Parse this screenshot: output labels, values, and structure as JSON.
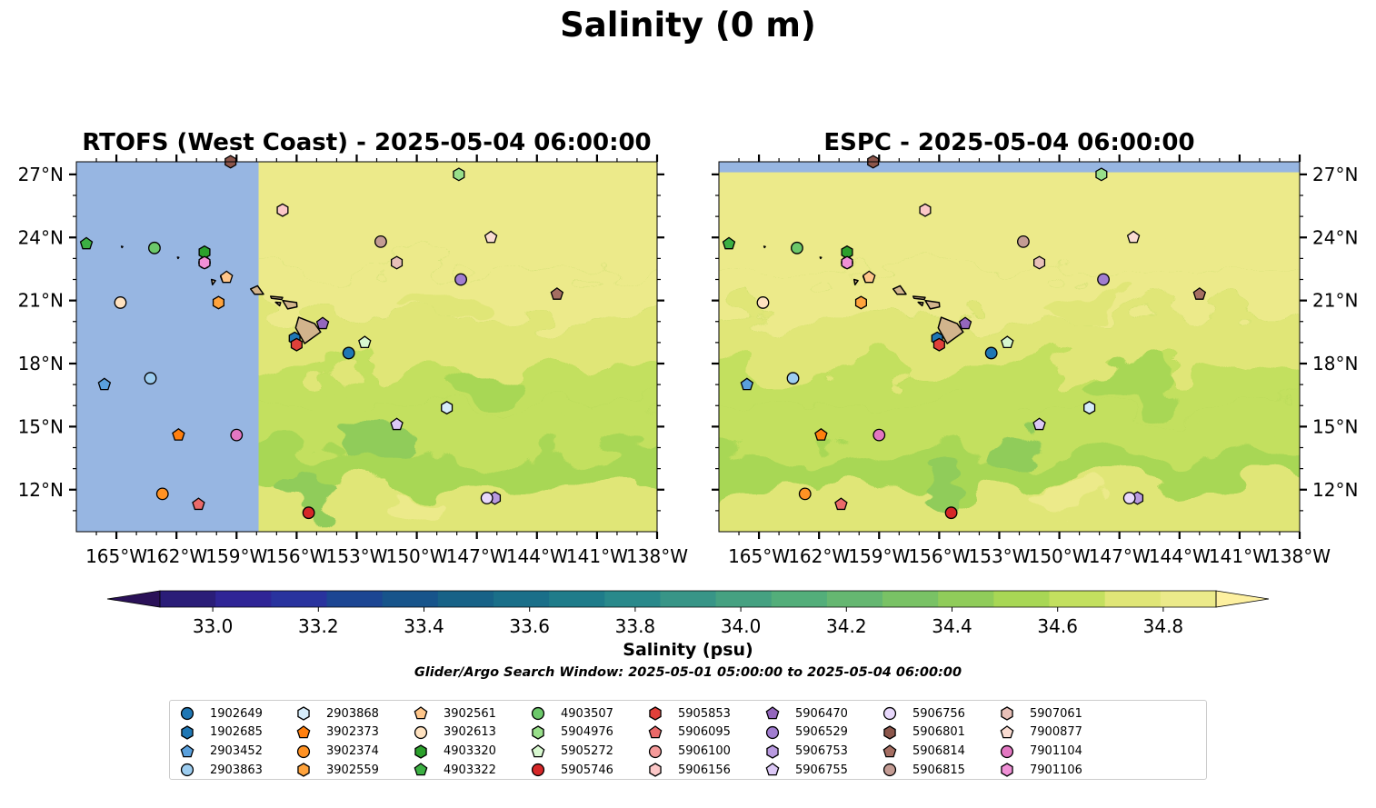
{
  "title": "Salinity (0 m)",
  "chart_data": [
    {
      "type": "heatmap",
      "title": "RTOFS (West Coast) - 2025-05-04 06:00:00",
      "xlim": [
        -167,
        -138
      ],
      "ylim": [
        10,
        27.6
      ],
      "x_ticks": [
        "165°W",
        "162°W",
        "159°W",
        "156°W",
        "153°W",
        "150°W",
        "147°W",
        "144°W",
        "141°W",
        "138°W"
      ],
      "y_ticks": [
        "12°N",
        "15°N",
        "18°N",
        "21°N",
        "24°N",
        "27°N"
      ],
      "tick_side": "left",
      "no_data_region": {
        "lon_max": -157.9
      },
      "field_description": "salinity 34.4–34.9 psu, lower values south, higher values north"
    },
    {
      "type": "heatmap",
      "title": "ESPC - 2025-05-04 06:00:00",
      "xlim": [
        -167,
        -138
      ],
      "ylim": [
        10,
        27.6
      ],
      "x_ticks": [
        "165°W",
        "162°W",
        "159°W",
        "156°W",
        "153°W",
        "150°W",
        "147°W",
        "144°W",
        "141°W",
        "138°W"
      ],
      "y_ticks": [
        "12°N",
        "15°N",
        "18°N",
        "21°N",
        "24°N",
        "27°N"
      ],
      "tick_side": "right",
      "no_data_region": {
        "lat_min": 27.1
      },
      "field_description": "salinity 34.4–34.9 psu, lower values south, higher values north"
    }
  ],
  "colorbar": {
    "label": "Salinity (psu)",
    "min": 32.9,
    "max": 34.9,
    "step": 0.1,
    "extend": "both",
    "ticks": [
      "33.0",
      "33.2",
      "33.4",
      "33.6",
      "33.8",
      "34.0",
      "34.2",
      "34.4",
      "34.6",
      "34.8"
    ],
    "colors": [
      "#2a1d78",
      "#2f2596",
      "#29339e",
      "#1c4693",
      "#17548b",
      "#176287",
      "#1a6f89",
      "#1f7c8a",
      "#29898b",
      "#389587",
      "#45a181",
      "#53ae7a",
      "#65b771",
      "#79c265",
      "#90cc5a",
      "#a8d755",
      "#c3e05f",
      "#e0e677",
      "#ecea8a"
    ],
    "under_color": "#2a1158",
    "over_color": "#fdf0a0"
  },
  "search_window": "Glider/Argo Search Window: 2025-05-01 05:00:00 to 2025-05-04 06:00:00",
  "legend": [
    {
      "id": "1902649",
      "marker": "circle",
      "color": "#1f77b4"
    },
    {
      "id": "1902685",
      "marker": "hexagon",
      "color": "#1f77b4"
    },
    {
      "id": "2903452",
      "marker": "pentagon",
      "color": "#5aa0dc"
    },
    {
      "id": "2903863",
      "marker": "circle",
      "color": "#9dcdf0"
    },
    {
      "id": "2903868",
      "marker": "hexagon",
      "color": "#d6ecfa"
    },
    {
      "id": "3902373",
      "marker": "pentagon",
      "color": "#ff7f0e"
    },
    {
      "id": "3902374",
      "marker": "circle",
      "color": "#ff9224"
    },
    {
      "id": "3902559",
      "marker": "hexagon",
      "color": "#ffa33c"
    },
    {
      "id": "3902561",
      "marker": "pentagon",
      "color": "#ffc68a"
    },
    {
      "id": "3902613",
      "marker": "circle",
      "color": "#ffe2c0"
    },
    {
      "id": "4903320",
      "marker": "hexagon",
      "color": "#2ca02c"
    },
    {
      "id": "4903322",
      "marker": "pentagon",
      "color": "#3cb043"
    },
    {
      "id": "4903507",
      "marker": "circle",
      "color": "#6cc86a"
    },
    {
      "id": "5904976",
      "marker": "hexagon",
      "color": "#98df8a"
    },
    {
      "id": "5905272",
      "marker": "pentagon",
      "color": "#d8f8d0"
    },
    {
      "id": "5905746",
      "marker": "circle",
      "color": "#d62728"
    },
    {
      "id": "5905853",
      "marker": "hexagon",
      "color": "#e0403a"
    },
    {
      "id": "5906095",
      "marker": "pentagon",
      "color": "#ea6a6a"
    },
    {
      "id": "5906100",
      "marker": "circle",
      "color": "#f59a9a"
    },
    {
      "id": "5906156",
      "marker": "hexagon",
      "color": "#fcc8c8"
    },
    {
      "id": "5906470",
      "marker": "pentagon",
      "color": "#9467bd"
    },
    {
      "id": "5906529",
      "marker": "circle",
      "color": "#a17dd0"
    },
    {
      "id": "5906753",
      "marker": "hexagon",
      "color": "#b99ae0"
    },
    {
      "id": "5906755",
      "marker": "pentagon",
      "color": "#dcc8f6"
    },
    {
      "id": "5906756",
      "marker": "circle",
      "color": "#e8d8fc"
    },
    {
      "id": "5906801",
      "marker": "hexagon",
      "color": "#8c564b"
    },
    {
      "id": "5906814",
      "marker": "pentagon",
      "color": "#a56e62"
    },
    {
      "id": "5906815",
      "marker": "circle",
      "color": "#c49c94"
    },
    {
      "id": "5907061",
      "marker": "hexagon",
      "color": "#e8c0b8"
    },
    {
      "id": "7900877",
      "marker": "pentagon",
      "color": "#fadcd2"
    },
    {
      "id": "7901104",
      "marker": "circle",
      "color": "#e377c2"
    },
    {
      "id": "7901106",
      "marker": "hexagon",
      "color": "#f090d6"
    }
  ],
  "floats": [
    {
      "id": "1902649",
      "lon": -153.4,
      "lat": 18.5
    },
    {
      "id": "1902685",
      "lon": -156.1,
      "lat": 19.2
    },
    {
      "id": "2903452",
      "lon": -165.6,
      "lat": 17.0
    },
    {
      "id": "2903863",
      "lon": -163.3,
      "lat": 17.3
    },
    {
      "id": "2903868",
      "lon": -148.5,
      "lat": 15.9
    },
    {
      "id": "3902373",
      "lon": -161.9,
      "lat": 14.6
    },
    {
      "id": "3902374",
      "lon": -162.7,
      "lat": 11.8
    },
    {
      "id": "3902559",
      "lon": -159.9,
      "lat": 20.9
    },
    {
      "id": "3902561",
      "lon": -159.5,
      "lat": 22.1
    },
    {
      "id": "3902613",
      "lon": -164.8,
      "lat": 20.9
    },
    {
      "id": "4903320",
      "lon": -160.6,
      "lat": 23.3
    },
    {
      "id": "4903322",
      "lon": -166.5,
      "lat": 23.7
    },
    {
      "id": "4903507",
      "lon": -163.1,
      "lat": 23.5
    },
    {
      "id": "5904976",
      "lon": -147.9,
      "lat": 27.0
    },
    {
      "id": "5905272",
      "lon": -152.6,
      "lat": 19.0
    },
    {
      "id": "5905746",
      "lon": -155.4,
      "lat": 10.9
    },
    {
      "id": "5905853",
      "lon": -156.0,
      "lat": 18.9
    },
    {
      "id": "5906095",
      "lon": -160.9,
      "lat": 11.3
    },
    {
      "id": "5906100",
      "lon": -160.6,
      "lat": 22.8
    },
    {
      "id": "5906156",
      "lon": -156.7,
      "lat": 25.3
    },
    {
      "id": "5906470",
      "lon": -154.7,
      "lat": 19.9
    },
    {
      "id": "5906529",
      "lon": -147.8,
      "lat": 22.0
    },
    {
      "id": "5906753",
      "lon": -146.1,
      "lat": 11.6
    },
    {
      "id": "5906755",
      "lon": -151.0,
      "lat": 15.1
    },
    {
      "id": "5906756",
      "lon": -146.5,
      "lat": 11.6
    },
    {
      "id": "5906801",
      "lon": -159.3,
      "lat": 27.6
    },
    {
      "id": "5906814",
      "lon": -143.0,
      "lat": 21.3
    },
    {
      "id": "5906815",
      "lon": -151.8,
      "lat": 23.8
    },
    {
      "id": "5907061",
      "lon": -151.0,
      "lat": 22.8
    },
    {
      "id": "7900877",
      "lon": -146.3,
      "lat": 24.0
    },
    {
      "id": "7901104",
      "lon": -159.0,
      "lat": 14.6
    },
    {
      "id": "7901106",
      "lon": -160.6,
      "lat": 22.8
    }
  ]
}
